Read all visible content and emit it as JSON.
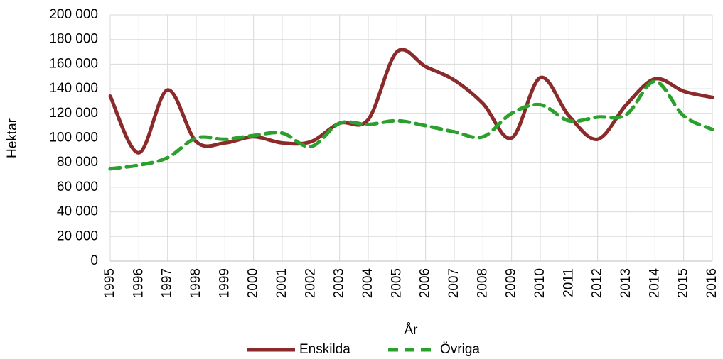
{
  "chart_data": {
    "type": "line",
    "x_label": "År",
    "y_label": "Hektar",
    "categories": [
      "1995",
      "1996",
      "1997",
      "1998",
      "1999",
      "2000",
      "2001",
      "2002",
      "2003",
      "2004",
      "2005",
      "2006",
      "2007",
      "2008",
      "2009",
      "2010",
      "2011",
      "2012",
      "2013",
      "2014",
      "2015",
      "2016"
    ],
    "series": [
      {
        "name": "Enskilda",
        "color": "#8b2a2a",
        "dash": "solid",
        "values": [
          134000,
          88000,
          139000,
          97000,
          96000,
          101000,
          96000,
          97000,
          112000,
          115000,
          170000,
          158000,
          147000,
          128000,
          100000,
          149000,
          118000,
          99000,
          127000,
          148000,
          138000,
          133000
        ]
      },
      {
        "name": "Övriga",
        "color": "#2ca02c",
        "dash": "dashed",
        "values": [
          75000,
          78000,
          84000,
          100000,
          99000,
          102000,
          104000,
          93000,
          112000,
          111000,
          114000,
          110000,
          105000,
          101000,
          120000,
          127000,
          114000,
          117000,
          119000,
          146000,
          118000,
          107000
        ]
      }
    ],
    "ylim": [
      0,
      200000
    ],
    "yticks": [
      0,
      {
        "value": 20000,
        "label": "20 000"
      },
      {
        "value": 40000,
        "label": "40 000"
      },
      {
        "value": 60000,
        "label": "60 000"
      },
      {
        "value": 80000,
        "label": "80 000"
      },
      {
        "value": 100000,
        "label": "100 000"
      },
      {
        "value": 120000,
        "label": "120 000"
      },
      {
        "value": 140000,
        "label": "140 000"
      },
      {
        "value": 160000,
        "label": "160 000"
      },
      {
        "value": 180000,
        "label": "180 000"
      },
      {
        "value": 200000,
        "label": "200 000"
      }
    ],
    "grid": true,
    "legend": "bottom"
  }
}
